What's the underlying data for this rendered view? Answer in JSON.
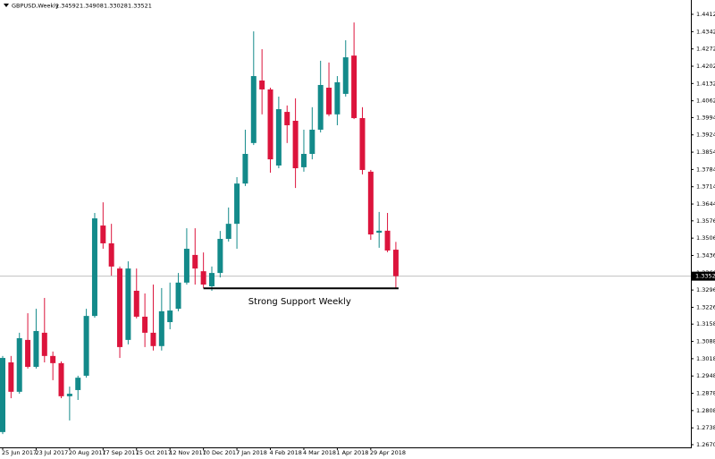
{
  "chart_data": {
    "type": "candlestick",
    "title": "GBPUSD,Weekly",
    "x": [
      "25 Jun 2017",
      null,
      null,
      null,
      "23 Jul 2017",
      null,
      null,
      null,
      "20 Aug 2017",
      null,
      null,
      null,
      "17 Sep 2017",
      null,
      null,
      null,
      "15 Oct 2017",
      null,
      null,
      null,
      "12 Nov 2017",
      null,
      null,
      null,
      "10 Dec 2017",
      null,
      null,
      null,
      "7 Jan 2018",
      null,
      null,
      null,
      "4 Feb 2018",
      null,
      null,
      null,
      "4 Mar 2018",
      null,
      null,
      null,
      "1 Apr 2018",
      null,
      null,
      null,
      "29 Apr 2018",
      null,
      null,
      null
    ],
    "open": [
      1.2721,
      1.3003,
      1.2884,
      1.3094,
      1.2985,
      1.3123,
      1.3029,
      1.3,
      1.2866,
      1.2891,
      1.2949,
      1.3191,
      1.3557,
      1.3485,
      1.3383,
      1.3094,
      1.3293,
      1.3188,
      1.3123,
      1.3069,
      1.3166,
      1.322,
      1.3326,
      1.3438,
      1.3372,
      1.3311,
      1.3365,
      1.3503,
      1.3564,
      1.3727,
      1.3891,
      1.4144,
      1.4108,
      1.38,
      1.4017,
      1.3981,
      1.3793,
      1.3847,
      1.3945,
      1.4115,
      1.4007,
      1.409,
      1.4245,
      1.3992,
      1.3775,
      1.3528,
      1.3536,
      1.34592
    ],
    "high": [
      1.3029,
      1.3029,
      1.3123,
      1.3202,
      1.322,
      1.3264,
      1.3047,
      1.3007,
      1.2905,
      1.2949,
      1.322,
      1.3608,
      1.3651,
      1.3564,
      1.3391,
      1.3412,
      1.3383,
      1.3282,
      1.3318,
      1.3304,
      1.3326,
      1.3365,
      1.3546,
      1.3546,
      1.3448,
      1.3391,
      1.3535,
      1.363,
      1.3753,
      1.3945,
      1.4343,
      1.4271,
      1.4115,
      1.4079,
      1.4043,
      1.4072,
      1.3945,
      1.4036,
      1.4224,
      1.4217,
      1.4162,
      1.4307,
      1.4379,
      1.4036,
      1.3782,
      1.3612,
      1.3608,
      1.34908
    ],
    "low": [
      1.2713,
      1.2858,
      1.2876,
      1.2978,
      1.2978,
      1.3003,
      1.2931,
      1.2858,
      1.2768,
      1.2851,
      1.2941,
      1.3184,
      1.3463,
      1.3354,
      1.3021,
      1.3076,
      1.3181,
      1.3065,
      1.3051,
      1.3051,
      1.3137,
      1.321,
      1.3318,
      1.3318,
      1.3304,
      1.3293,
      1.3347,
      1.3492,
      1.3463,
      1.3717,
      1.3883,
      1.4007,
      1.3771,
      1.3789,
      1.3891,
      1.3709,
      1.3775,
      1.3825,
      1.3934,
      1.4,
      1.3963,
      1.4079,
      1.3988,
      1.3764,
      1.3499,
      1.3467,
      1.3449,
      1.33028
    ],
    "close": [
      1.3021,
      1.2884,
      1.3101,
      1.2985,
      1.313,
      1.3029,
      1.3,
      1.2866,
      1.2876,
      1.2941,
      1.3191,
      1.3586,
      1.3485,
      1.3391,
      1.3065,
      1.3383,
      1.3188,
      1.3123,
      1.3069,
      1.321,
      1.3213,
      1.3326,
      1.3463,
      1.3383,
      1.3318,
      1.3365,
      1.3503,
      1.3564,
      1.3727,
      1.3847,
      1.4162,
      1.4108,
      1.3825,
      1.4028,
      1.3963,
      1.3789,
      1.3847,
      1.3945,
      1.4126,
      1.4007,
      1.4137,
      1.4238,
      1.3992,
      1.3782,
      1.3521,
      1.3536,
      1.3456,
      1.33521
    ],
    "up_color": "#138a8a",
    "down_color": "#dc143c",
    "current_price": 1.33521,
    "support": {
      "label": "Strong Support Weekly",
      "value": 1.3303,
      "from": 24,
      "to": 47
    },
    "ylim": [
      1.2659,
      1.447
    ],
    "yticks": [
      {
        "value": 1.4412,
        "label": "1.44120"
      },
      {
        "value": 1.4342,
        "label": "1.43420"
      },
      {
        "value": 1.4272,
        "label": "1.42720"
      },
      {
        "value": 1.4202,
        "label": "1.42020"
      },
      {
        "value": 1.4132,
        "label": "1.41320"
      },
      {
        "value": 1.4062,
        "label": "1.40620"
      },
      {
        "value": 1.3994,
        "label": "1.39940"
      },
      {
        "value": 1.3924,
        "label": "1.39240"
      },
      {
        "value": 1.3854,
        "label": "1.38540"
      },
      {
        "value": 1.3784,
        "label": "1.37840"
      },
      {
        "value": 1.3714,
        "label": "1.37140"
      },
      {
        "value": 1.3644,
        "label": "1.36440"
      },
      {
        "value": 1.3576,
        "label": "1.35760"
      },
      {
        "value": 1.3506,
        "label": "1.35060"
      },
      {
        "value": 1.3436,
        "label": "1.34360"
      },
      {
        "value": 1.3366,
        "label": "1.33660"
      },
      {
        "value": 1.3296,
        "label": "1.32960"
      },
      {
        "value": 1.3226,
        "label": "1.32260"
      },
      {
        "value": 1.3158,
        "label": "1.31580"
      },
      {
        "value": 1.3088,
        "label": "1.30880"
      },
      {
        "value": 1.3018,
        "label": "1.30180"
      },
      {
        "value": 1.2948,
        "label": "1.29480"
      },
      {
        "value": 1.2878,
        "label": "1.28780"
      },
      {
        "value": 1.2808,
        "label": "1.28080"
      },
      {
        "value": 1.2738,
        "label": "1.27380"
      },
      {
        "value": 1.267,
        "label": "1.26700"
      }
    ]
  }
}
